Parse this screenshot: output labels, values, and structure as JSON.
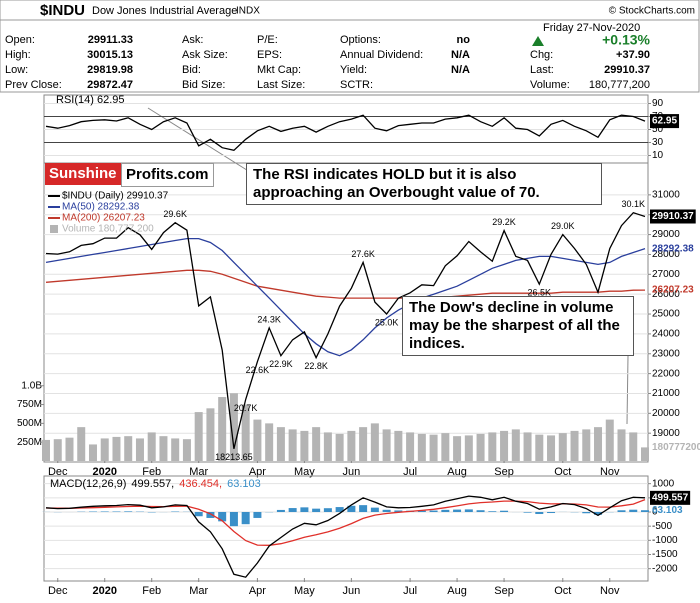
{
  "header": {
    "symbol": "$INDU",
    "name": "Dow Jones Industrial Average",
    "exchange": "INDX",
    "source": "© StockCharts.com",
    "date": "Friday  27-Nov-2020",
    "quote": [
      [
        "Open:",
        "29911.33",
        "Ask:",
        "P/E:",
        "Options:",
        "no"
      ],
      [
        "High:",
        "30015.13",
        "Ask Size:",
        "EPS:",
        "Annual Dividend:",
        "N/A"
      ],
      [
        "Low:",
        "29819.98",
        "Bid:",
        "Mkt Cap:",
        "Yield:",
        "N/A"
      ],
      [
        "Prev Close:",
        "29872.47",
        "Bid Size:",
        "Last Size:",
        "SCTR:"
      ]
    ],
    "change_pct": "+0.13%",
    "change": [
      [
        "Chg:",
        "+37.90"
      ],
      [
        "Last:",
        "29910.37"
      ],
      [
        "Volume:",
        "180,777,200"
      ]
    ]
  },
  "annotations": {
    "brand": [
      "Sunshine",
      "Profits.com"
    ],
    "callouts": [
      "The RSI indicates HOLD but it is also approaching an Overbought value of 70.",
      "The Dow's decline in volume may be the sharpest of all the indices."
    ]
  },
  "chart_data": [
    {
      "type": "line",
      "ylim": [
        0,
        100
      ],
      "yticks": [
        10,
        30,
        50,
        70,
        90
      ],
      "levels": [
        70,
        30
      ],
      "series": [
        {
          "name": "RSI(14) 62.95",
          "color": "#000000",
          "values": [
            55,
            52,
            56,
            62,
            64,
            65,
            63,
            68,
            58,
            50,
            62,
            68,
            60,
            25,
            35,
            22,
            18,
            35,
            48,
            55,
            47,
            52,
            55,
            46,
            55,
            62,
            66,
            72,
            52,
            48,
            56,
            58,
            60,
            60,
            66,
            68,
            72,
            62,
            55,
            68,
            52,
            50,
            40,
            58,
            64,
            55,
            48,
            38,
            65,
            72,
            70,
            62.95
          ]
        }
      ]
    },
    {
      "type": "line",
      "ylim": [
        17600,
        32000
      ],
      "yticks": [
        19000,
        20000,
        21000,
        22000,
        23000,
        24000,
        25000,
        26000,
        27000,
        28000,
        29000,
        30000,
        31000
      ],
      "y2lim": [
        0,
        3800000000
      ],
      "y2ticks": [
        {
          "value": 250000000,
          "label": "250M"
        },
        {
          "value": 500000000,
          "label": "500M"
        },
        {
          "value": 750000000,
          "label": "750M"
        },
        {
          "value": 1000000000,
          "label": "1.0B"
        }
      ],
      "grid": true,
      "categories": [
        null,
        "Dec",
        null,
        null,
        null,
        "2020",
        null,
        null,
        null,
        "Feb",
        null,
        null,
        null,
        "Mar",
        null,
        null,
        null,
        null,
        "Apr",
        null,
        null,
        null,
        "May",
        null,
        null,
        null,
        "Jun",
        null,
        null,
        null,
        null,
        "Jul",
        null,
        null,
        null,
        "Aug",
        null,
        null,
        null,
        "Sep",
        null,
        null,
        null,
        null,
        "Oct",
        null,
        null,
        null,
        "Nov",
        null,
        null,
        null
      ],
      "series": [
        {
          "name": "Volume 180,777,200",
          "color": "#b4b4b4",
          "style": "bar",
          "axis": "y2",
          "values": [
            280000000,
            290000000,
            310000000,
            450000000,
            220000000,
            300000000,
            320000000,
            330000000,
            300000000,
            380000000,
            330000000,
            300000000,
            290000000,
            650000000,
            700000000,
            850000000,
            900000000,
            750000000,
            550000000,
            500000000,
            450000000,
            420000000,
            400000000,
            450000000,
            380000000,
            360000000,
            400000000,
            450000000,
            500000000,
            420000000,
            400000000,
            380000000,
            360000000,
            350000000,
            370000000,
            330000000,
            340000000,
            360000000,
            380000000,
            400000000,
            420000000,
            380000000,
            350000000,
            340000000,
            370000000,
            400000000,
            420000000,
            450000000,
            550000000,
            420000000,
            380000000,
            180777200
          ]
        },
        {
          "name": "MA(200) 26207.23",
          "color": "#c0392b",
          "values": [
            26600,
            26650,
            26700,
            26750,
            26800,
            26850,
            26900,
            26950,
            27000,
            27050,
            27100,
            27150,
            27200,
            27200,
            27150,
            27000,
            26800,
            26600,
            26400,
            26300,
            26200,
            26100,
            26000,
            25900,
            25850,
            25800,
            25800,
            25800,
            25800,
            25800,
            25800,
            25800,
            25800,
            25800,
            25850,
            25900,
            25950,
            26000,
            26050,
            26050,
            26050,
            26050,
            26050,
            26050,
            26100,
            26100,
            26100,
            26100,
            26150,
            26150,
            26200,
            26207.23
          ]
        },
        {
          "name": "MA(50) 28292.38",
          "color": "#2a3f9d",
          "values": [
            27600,
            27700,
            27800,
            27900,
            28000,
            28100,
            28200,
            28300,
            28400,
            28500,
            28600,
            28700,
            28800,
            28800,
            28600,
            28200,
            27600,
            27000,
            26400,
            25800,
            25200,
            24600,
            24000,
            23500,
            23100,
            22900,
            23200,
            23700,
            24300,
            24800,
            25200,
            25500,
            25800,
            26000,
            26200,
            26400,
            26700,
            27000,
            27300,
            27500,
            27700,
            27800,
            27900,
            27900,
            27800,
            27700,
            27600,
            27500,
            27600,
            27900,
            28100,
            28292.38
          ]
        },
        {
          "name": "$INDU (Daily) 29910.37",
          "color": "#000000",
          "values": [
            28050,
            28015,
            28135,
            28455,
            28540,
            28823,
            28824,
            29348,
            28990,
            28256,
            29102,
            29600,
            29219,
            25409,
            25864,
            23185,
            18213.65,
            20700,
            22600,
            24300,
            22900,
            23700,
            24100,
            22800,
            24000,
            25400,
            26300,
            27600,
            25600,
            25000,
            25800,
            26070,
            26470,
            26430,
            27430,
            27930,
            28650,
            28130,
            27660,
            29200,
            27900,
            27700,
            26500,
            28000,
            29000,
            28300,
            27500,
            26100,
            28300,
            29450,
            30100,
            29910.37
          ],
          "value_labels": [
            null,
            null,
            null,
            null,
            null,
            null,
            null,
            null,
            null,
            null,
            null,
            "29.6K",
            null,
            null,
            null,
            null,
            "18213.65",
            "20.7K",
            "22.6K",
            "24.3K",
            "22.9K",
            null,
            null,
            "22.8K",
            null,
            null,
            null,
            "27.6K",
            null,
            "25.0K",
            null,
            null,
            null,
            null,
            null,
            null,
            null,
            null,
            null,
            "29.2K",
            null,
            null,
            "26.5K",
            null,
            "29.0K",
            null,
            null,
            "26.1K",
            null,
            null,
            "30.1K",
            null
          ]
        }
      ]
    },
    {
      "type": "line",
      "title": "MACD(12,26,9)",
      "ylim": [
        -2400,
        1200
      ],
      "yticks": [
        1000,
        500,
        0,
        -500,
        -1000,
        -1500,
        -2000
      ],
      "categories": [
        null,
        "Dec",
        null,
        null,
        null,
        "2020",
        null,
        null,
        null,
        "Feb",
        null,
        null,
        null,
        "Mar",
        null,
        null,
        null,
        null,
        "Apr",
        null,
        null,
        null,
        "May",
        null,
        null,
        null,
        "Jun",
        null,
        null,
        null,
        null,
        "Jul",
        null,
        null,
        null,
        "Aug",
        null,
        null,
        null,
        "Sep",
        null,
        null,
        null,
        null,
        "Oct",
        null,
        null,
        null,
        "Nov",
        null,
        null,
        null
      ],
      "series": [
        {
          "name": "63.103",
          "color": "#3a8fc8",
          "style": "bar",
          "values": [
            3,
            -5,
            -1,
            10,
            16,
            18,
            17,
            22,
            12,
            -14,
            -3,
            16,
            7,
            -150,
            -210,
            -330,
            -500,
            -430,
            -210,
            -8,
            73,
            139,
            164,
            118,
            134,
            174,
            219,
            242,
            154,
            78,
            54,
            46,
            47,
            51,
            76,
            85,
            92,
            63,
            26,
            45,
            -2,
            -23,
            -71,
            -36,
            3,
            -8,
            -44,
            -99,
            -7,
            61,
            81,
            63.103
          ]
        },
        {
          "name": "436.454,",
          "color": "#e0302a",
          "values": [
            140,
            135,
            132,
            140,
            152,
            166,
            179,
            195,
            204,
            193,
            190,
            202,
            208,
            96,
            -63,
            -311,
            -688,
            -1011,
            -1169,
            -1175,
            -1120,
            -1016,
            -893,
            -804,
            -703,
            -572,
            -408,
            -226,
            -111,
            -53,
            -12,
            22,
            58,
            96,
            153,
            216,
            285,
            332,
            352,
            386,
            385,
            368,
            314,
            287,
            290,
            284,
            251,
            177,
            172,
            218,
            278,
            436.454
          ]
        },
        {
          "name": "499.557,",
          "color": "#000000",
          "values": [
            150,
            120,
            130,
            170,
            200,
            220,
            230,
            260,
            240,
            150,
            180,
            250,
            230,
            -350,
            -700,
            -1300,
            -2200,
            -2300,
            -1800,
            -1200,
            -900,
            -600,
            -400,
            -450,
            -300,
            -50,
            250,
            500,
            350,
            180,
            150,
            160,
            200,
            250,
            380,
            470,
            560,
            520,
            430,
            520,
            380,
            300,
            100,
            180,
            300,
            260,
            120,
            -120,
            150,
            400,
            520,
            499.557
          ]
        }
      ]
    }
  ]
}
